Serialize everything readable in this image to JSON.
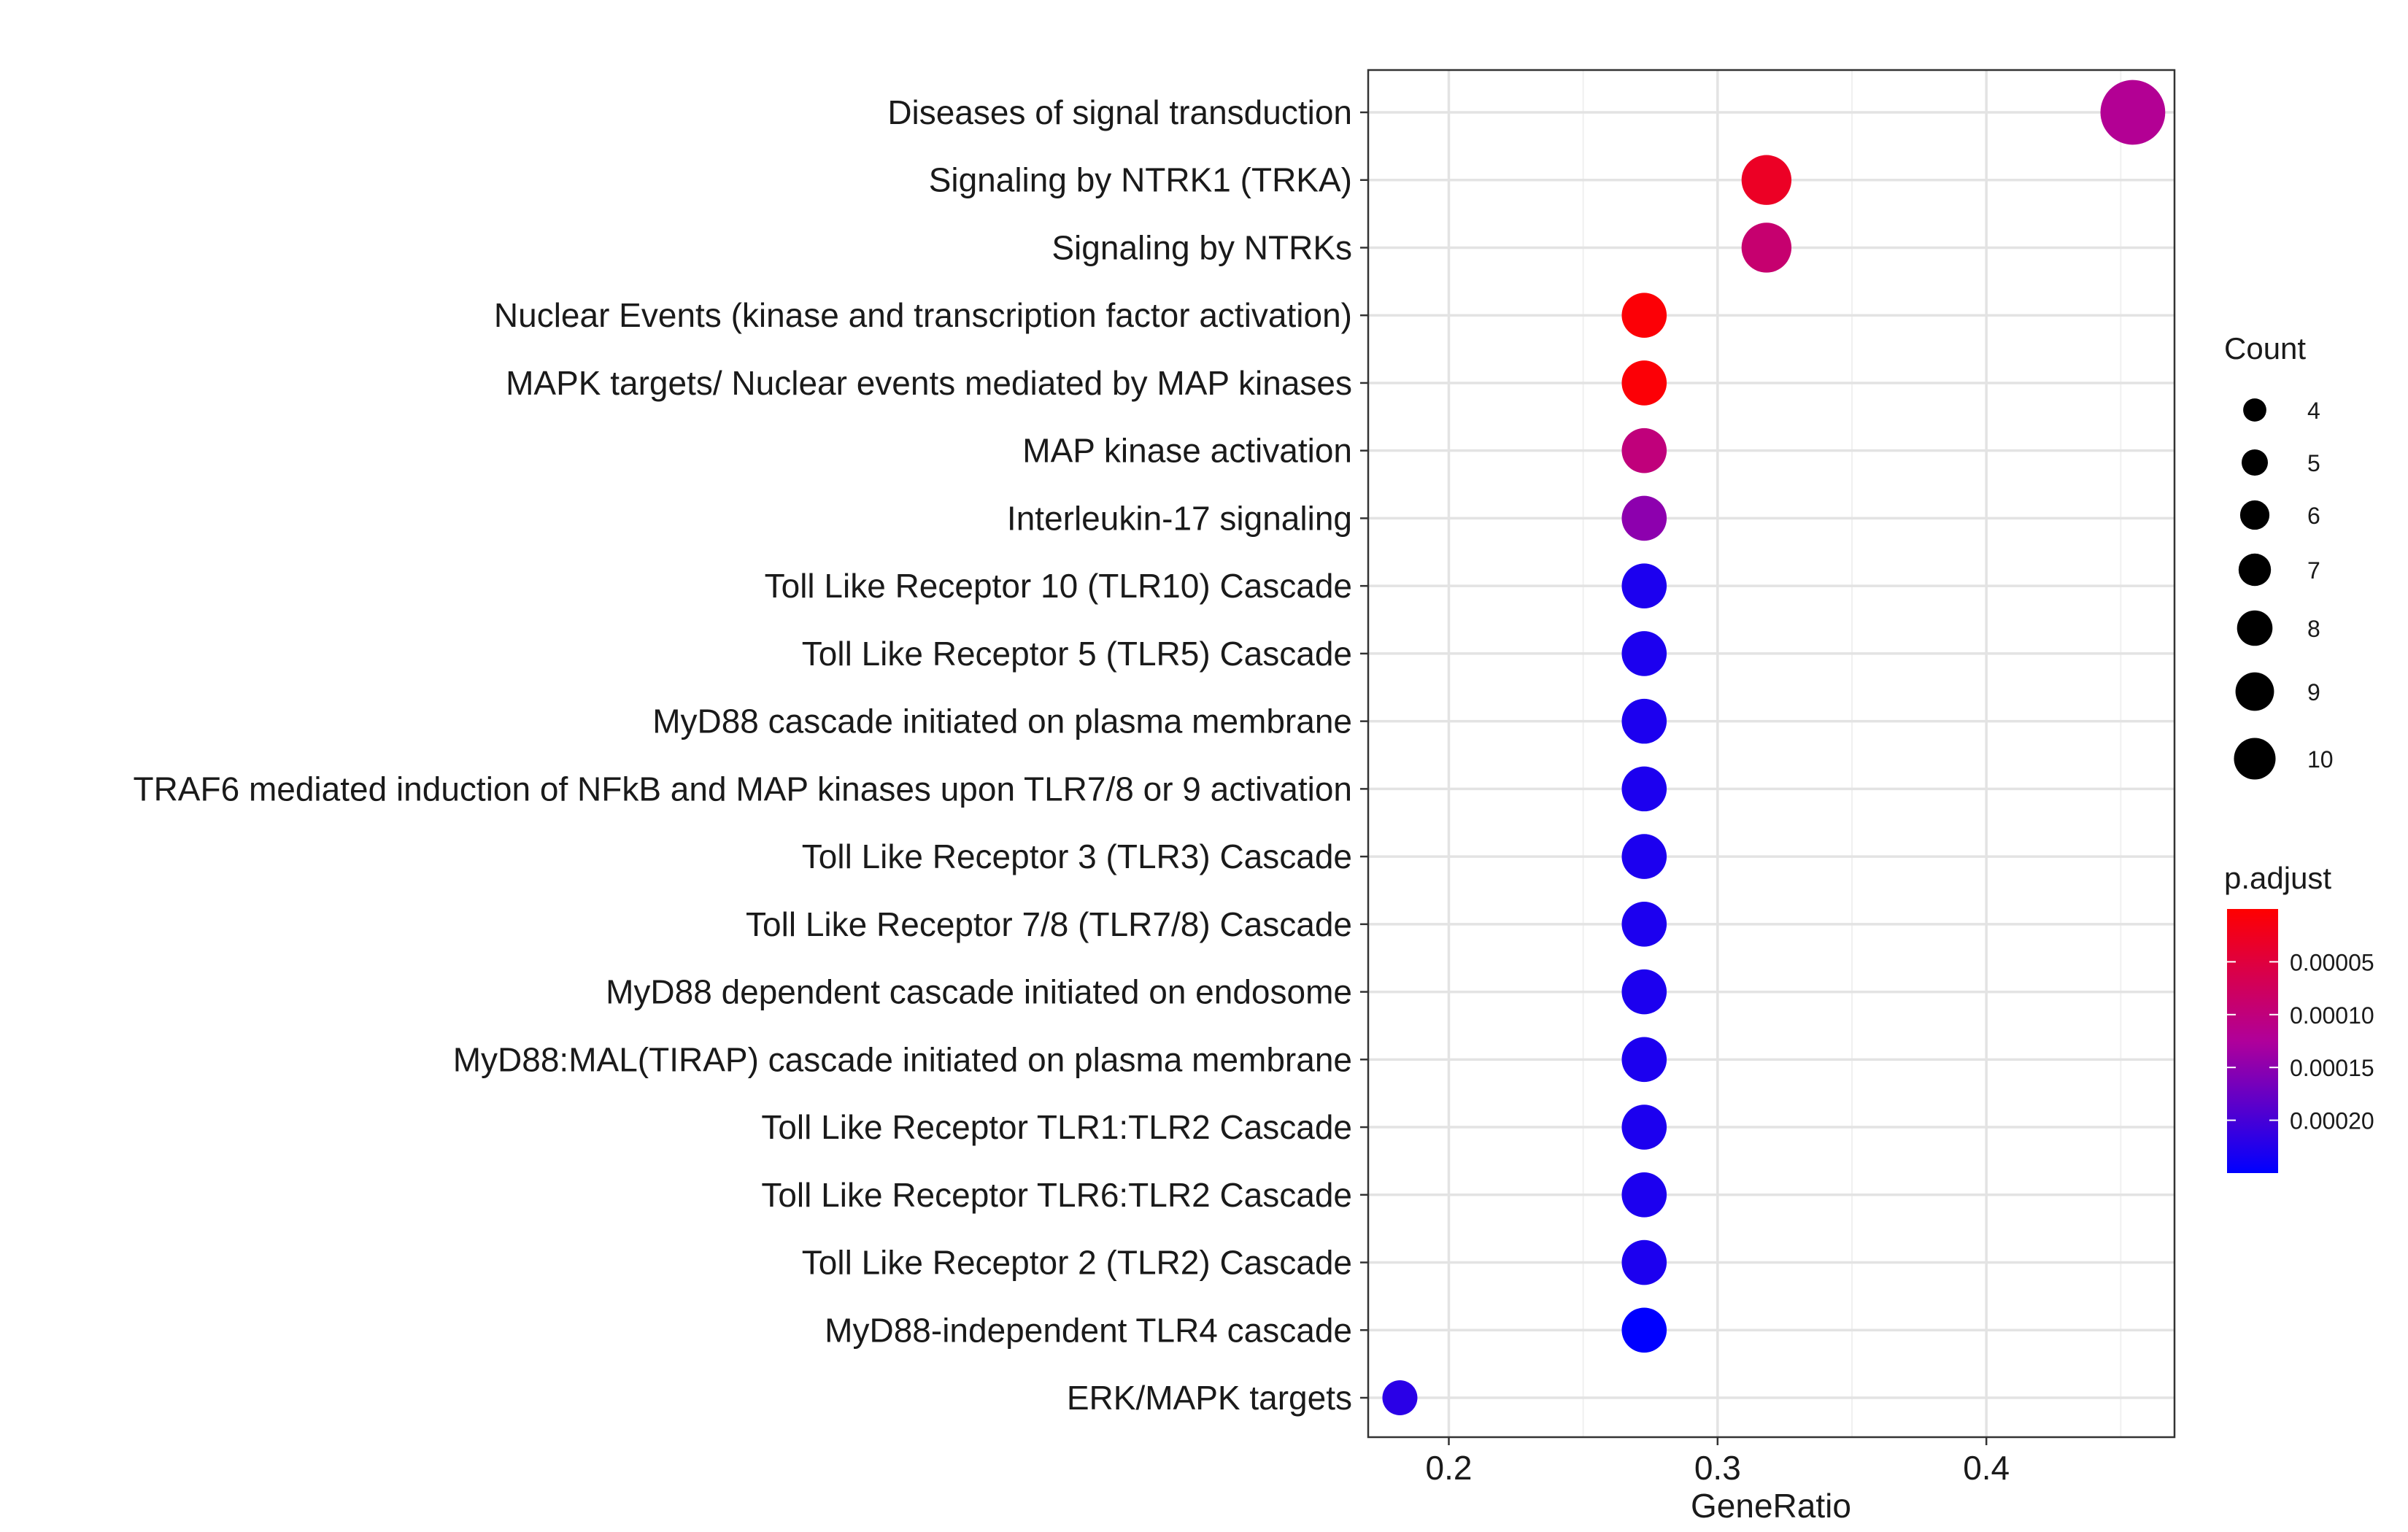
{
  "chart_data": {
    "type": "scatter",
    "xlabel": "GeneRatio",
    "xlim": [
      0.17,
      0.47
    ],
    "x_ticks": [
      0.2,
      0.3,
      0.4
    ],
    "x_tick_labels": [
      "0.2",
      "0.3",
      "0.4"
    ],
    "grid": true,
    "points": [
      {
        "term": "Diseases of signal transduction",
        "gene_ratio": 0.4545,
        "count": 10,
        "p_adjust": 0.00012
      },
      {
        "term": "Signaling by NTRK1 (TRKA)",
        "gene_ratio": 0.3182,
        "count": 7,
        "p_adjust": 3e-05
      },
      {
        "term": "Signaling by NTRKs",
        "gene_ratio": 0.3182,
        "count": 7,
        "p_adjust": 9e-05
      },
      {
        "term": "Nuclear Events (kinase and transcription factor activation)",
        "gene_ratio": 0.2727,
        "count": 6,
        "p_adjust": 5e-06
      },
      {
        "term": "MAPK targets/ Nuclear events mediated by MAP kinases",
        "gene_ratio": 0.2727,
        "count": 6,
        "p_adjust": 5e-06
      },
      {
        "term": "MAP kinase activation",
        "gene_ratio": 0.2727,
        "count": 6,
        "p_adjust": 0.0001
      },
      {
        "term": "Interleukin-17 signaling",
        "gene_ratio": 0.2727,
        "count": 6,
        "p_adjust": 0.00015
      },
      {
        "term": "Toll Like Receptor 10 (TLR10) Cascade",
        "gene_ratio": 0.2727,
        "count": 6,
        "p_adjust": 0.00023
      },
      {
        "term": "Toll Like Receptor 5 (TLR5) Cascade",
        "gene_ratio": 0.2727,
        "count": 6,
        "p_adjust": 0.00023
      },
      {
        "term": "MyD88 cascade initiated on plasma membrane",
        "gene_ratio": 0.2727,
        "count": 6,
        "p_adjust": 0.00023
      },
      {
        "term": "TRAF6 mediated induction of NFkB and MAP kinases upon TLR7/8 or 9 activation",
        "gene_ratio": 0.2727,
        "count": 6,
        "p_adjust": 0.00023
      },
      {
        "term": "Toll Like Receptor 3 (TLR3) Cascade",
        "gene_ratio": 0.2727,
        "count": 6,
        "p_adjust": 0.00023
      },
      {
        "term": "Toll Like Receptor 7/8 (TLR7/8) Cascade",
        "gene_ratio": 0.2727,
        "count": 6,
        "p_adjust": 0.00023
      },
      {
        "term": "MyD88 dependent cascade initiated on endosome",
        "gene_ratio": 0.2727,
        "count": 6,
        "p_adjust": 0.00023
      },
      {
        "term": "MyD88:MAL(TIRAP) cascade initiated on plasma membrane",
        "gene_ratio": 0.2727,
        "count": 6,
        "p_adjust": 0.00023
      },
      {
        "term": "Toll Like Receptor TLR1:TLR2 Cascade",
        "gene_ratio": 0.2727,
        "count": 6,
        "p_adjust": 0.00023
      },
      {
        "term": "Toll Like Receptor TLR6:TLR2 Cascade",
        "gene_ratio": 0.2727,
        "count": 6,
        "p_adjust": 0.00023
      },
      {
        "term": "Toll Like Receptor 2 (TLR2) Cascade",
        "gene_ratio": 0.2727,
        "count": 6,
        "p_adjust": 0.00023
      },
      {
        "term": "MyD88-independent TLR4 cascade ",
        "gene_ratio": 0.2727,
        "count": 6,
        "p_adjust": 0.00025
      },
      {
        "term": "ERK/MAPK targets",
        "gene_ratio": 0.1818,
        "count": 4,
        "p_adjust": 0.00022
      }
    ],
    "size_legend": {
      "title": "Count",
      "values": [
        4,
        5,
        6,
        7,
        8,
        9,
        10
      ],
      "labels": [
        "4",
        "5",
        "6",
        "7",
        "8",
        "9",
        "10"
      ]
    },
    "color_legend": {
      "title": "p.adjust",
      "range": [
        0.0,
        0.00025
      ],
      "low_color": "#ff0000",
      "high_color": "#0000ff",
      "ticks": [
        5e-05,
        0.0001,
        0.00015,
        0.0002
      ],
      "tick_labels": [
        "0.00005",
        "0.00010",
        "0.00015",
        "0.00020"
      ]
    }
  }
}
